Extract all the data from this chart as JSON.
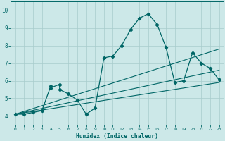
{
  "xlabel": "Humidex (Indice chaleur)",
  "bg_color": "#cce8e8",
  "grid_color": "#a8cccc",
  "line_color": "#006666",
  "xlim": [
    -0.5,
    23.5
  ],
  "ylim": [
    3.5,
    10.5
  ],
  "xticks": [
    0,
    1,
    2,
    3,
    4,
    5,
    6,
    7,
    8,
    9,
    10,
    11,
    12,
    13,
    14,
    15,
    16,
    17,
    18,
    19,
    20,
    21,
    22,
    23
  ],
  "yticks": [
    4,
    5,
    6,
    7,
    8,
    9,
    10
  ],
  "curve_x": [
    0,
    1,
    2,
    3,
    4,
    4,
    5,
    5,
    6,
    7,
    8,
    9,
    10,
    11,
    12,
    13,
    14,
    15,
    16,
    17,
    18,
    19,
    20,
    21,
    22,
    23
  ],
  "curve_y": [
    4.1,
    4.1,
    4.2,
    4.3,
    5.7,
    5.6,
    5.8,
    5.5,
    5.25,
    4.9,
    4.1,
    4.45,
    7.3,
    7.4,
    8.0,
    8.9,
    9.55,
    9.8,
    9.2,
    7.9,
    5.9,
    6.0,
    7.6,
    7.0,
    6.7,
    6.05
  ],
  "trend1_x": [
    0,
    23
  ],
  "trend1_y": [
    4.1,
    7.8
  ],
  "trend2_x": [
    0,
    23
  ],
  "trend2_y": [
    4.1,
    6.6
  ],
  "trend3_x": [
    0,
    23
  ],
  "trend3_y": [
    4.1,
    5.9
  ]
}
